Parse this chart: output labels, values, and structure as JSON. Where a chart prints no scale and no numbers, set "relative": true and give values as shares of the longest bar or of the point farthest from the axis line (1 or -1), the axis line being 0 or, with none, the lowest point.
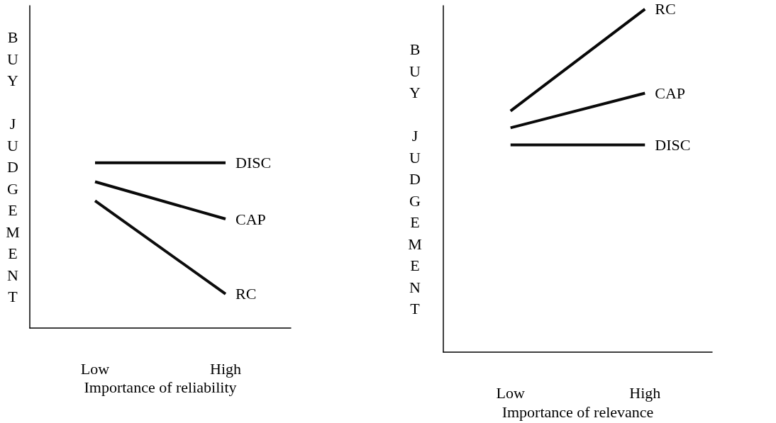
{
  "chart_data": [
    {
      "type": "line",
      "relative": true,
      "categories": [
        "Low",
        "High"
      ],
      "xlabel": "Importance of reliability",
      "ylabel": "BUY JUDGEMENT",
      "legend": false,
      "marker": "none",
      "line_style": "solid",
      "grid": false,
      "series": [
        {
          "name": "DISC",
          "color": "#080808",
          "values": [
            1,
            1
          ]
        },
        {
          "name": "CAP",
          "color": "#0a0a0a",
          "values": [
            0.885,
            0.66
          ]
        },
        {
          "name": "RC",
          "color": "#0c0c0c",
          "values": [
            0.77,
            0.206
          ]
        }
      ]
    },
    {
      "type": "line",
      "relative": true,
      "categories": [
        "Low",
        "High"
      ],
      "xlabel": "Importance of relevance",
      "ylabel": "BUY JUDGEMENT",
      "legend": false,
      "marker": "none",
      "line_style": "solid",
      "grid": false,
      "series": [
        {
          "name": "RC",
          "color": "#080808",
          "values": [
            0.703,
            1
          ]
        },
        {
          "name": "CAP",
          "color": "#0a0a0a",
          "values": [
            0.654,
            0.755
          ]
        },
        {
          "name": "DISC",
          "color": "#0c0c0c",
          "values": [
            0.604,
            0.604
          ]
        }
      ]
    }
  ]
}
